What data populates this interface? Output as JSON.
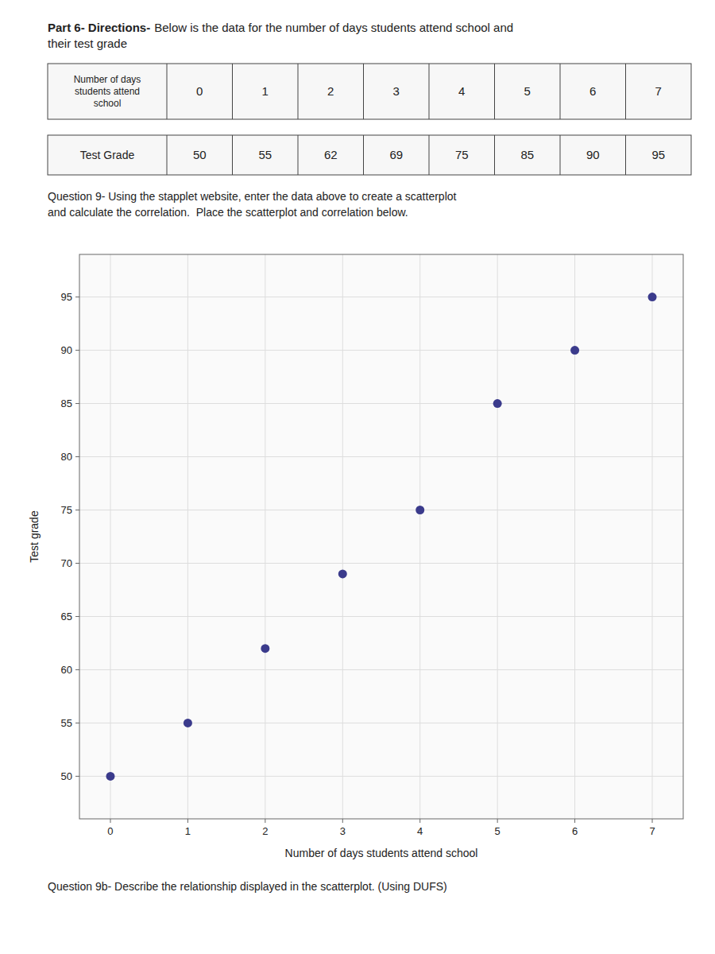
{
  "chart_data": {
    "type": "scatter",
    "title": "Part 6- Directions-",
    "subtitle": "Below is the data for the number of days students attend school and\ntheir test grade",
    "annotations": [
      "Number of days\nstudents attend\nschool",
      "Test Grade",
      "Question 9- Using the stapplet website, enter the data above to create a scatterplot\nand calculate the correlation.  Place the scatterplot and correlation below.",
      "Question 9b- Describe the relationship displayed in the scatterplot. (Using DUFS)"
    ],
    "x": [
      0,
      1,
      2,
      3,
      4,
      5,
      6,
      7
    ],
    "values": [
      50,
      55,
      62,
      69,
      75,
      85,
      90,
      95
    ],
    "x_label": "Number of days students attend school",
    "y_label": "Test grade",
    "xlim": [
      -0.4,
      7.4
    ],
    "ylim": [
      46,
      99
    ],
    "xticks": [
      0,
      1,
      2,
      3,
      4,
      5,
      6,
      7
    ],
    "yticks": [
      50,
      55,
      60,
      65,
      70,
      75,
      80,
      85,
      90,
      95
    ],
    "color": "#3b3b8c",
    "marker": "circle",
    "grid": true
  }
}
